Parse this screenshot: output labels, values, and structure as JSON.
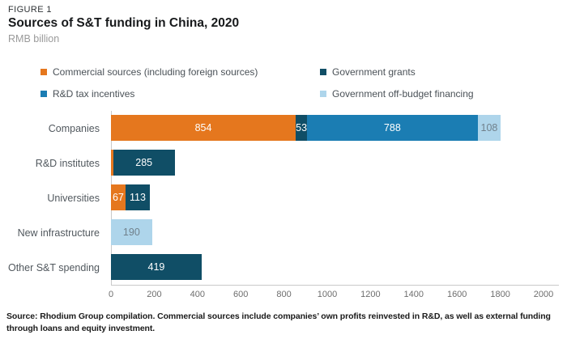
{
  "figure_label": "FIGURE 1",
  "title": "Sources of S&T funding in China, 2020",
  "subtitle": "RMB billion",
  "source_note": "Source: Rhodium Group compilation. Commercial sources include companies’ own profits reinvested in R&D, as well as external funding through loans and equity investment.",
  "colors": {
    "commercial": "#e5771e",
    "government_grants": "#104e66",
    "rd_tax_incentives": "#1b7db3",
    "off_budget": "#aed5eb",
    "axis_line": "#c9c9c9",
    "tick_text": "#6e6e6e"
  },
  "chart_data": {
    "type": "bar",
    "orientation": "horizontal",
    "stacked": true,
    "title": "Sources of S&T funding in China, 2020",
    "unit": "RMB billion",
    "grid": false,
    "legend_position": "top",
    "xlim": [
      0,
      2000
    ],
    "xticks": [
      0,
      200,
      400,
      600,
      800,
      1000,
      1200,
      1400,
      1600,
      1800,
      2000
    ],
    "legend": [
      {
        "label": "Commercial sources (including foreign sources)",
        "color": "#e5771e"
      },
      {
        "label": "Government grants",
        "color": "#104e66"
      },
      {
        "label": "R&D tax incentives",
        "color": "#1b7db3"
      },
      {
        "label": "Government off-budget financing",
        "color": "#aed5eb"
      }
    ],
    "categories": [
      "Companies",
      "R&D institutes",
      "Universities",
      "New infrastructure",
      "Other S&T spending"
    ],
    "rows": [
      {
        "category": "Companies",
        "segments": [
          {
            "series": "Commercial sources (including foreign sources)",
            "value": 854,
            "label": "854",
            "color": "#e5771e",
            "label_style": "light"
          },
          {
            "series": "Government grants",
            "value": 53,
            "label": "53",
            "color": "#104e66",
            "label_style": "light"
          },
          {
            "series": "R&D tax incentives",
            "value": 788,
            "label": "788",
            "color": "#1b7db3",
            "label_style": "light"
          },
          {
            "series": "Government off-budget financing",
            "value": 108,
            "label": "108",
            "color": "#aed5eb",
            "label_style": "muted"
          }
        ]
      },
      {
        "category": "R&D institutes",
        "segments": [
          {
            "series": "Commercial sources (including foreign sources)",
            "value": 10,
            "label": "",
            "color": "#e5771e",
            "label_style": "light"
          },
          {
            "series": "Government grants",
            "value": 285,
            "label": "285",
            "color": "#104e66",
            "label_style": "light"
          }
        ]
      },
      {
        "category": "Universities",
        "segments": [
          {
            "series": "Commercial sources (including foreign sources)",
            "value": 67,
            "label": "67",
            "color": "#e5771e",
            "label_style": "light"
          },
          {
            "series": "Government grants",
            "value": 113,
            "label": "113",
            "color": "#104e66",
            "label_style": "light"
          }
        ]
      },
      {
        "category": "New infrastructure",
        "segments": [
          {
            "series": "Government off-budget financing",
            "value": 190,
            "label": "190",
            "color": "#aed5eb",
            "label_style": "muted"
          }
        ]
      },
      {
        "category": "Other S&T spending",
        "segments": [
          {
            "series": "Government grants",
            "value": 419,
            "label": "419",
            "color": "#104e66",
            "label_style": "light"
          }
        ]
      }
    ]
  }
}
